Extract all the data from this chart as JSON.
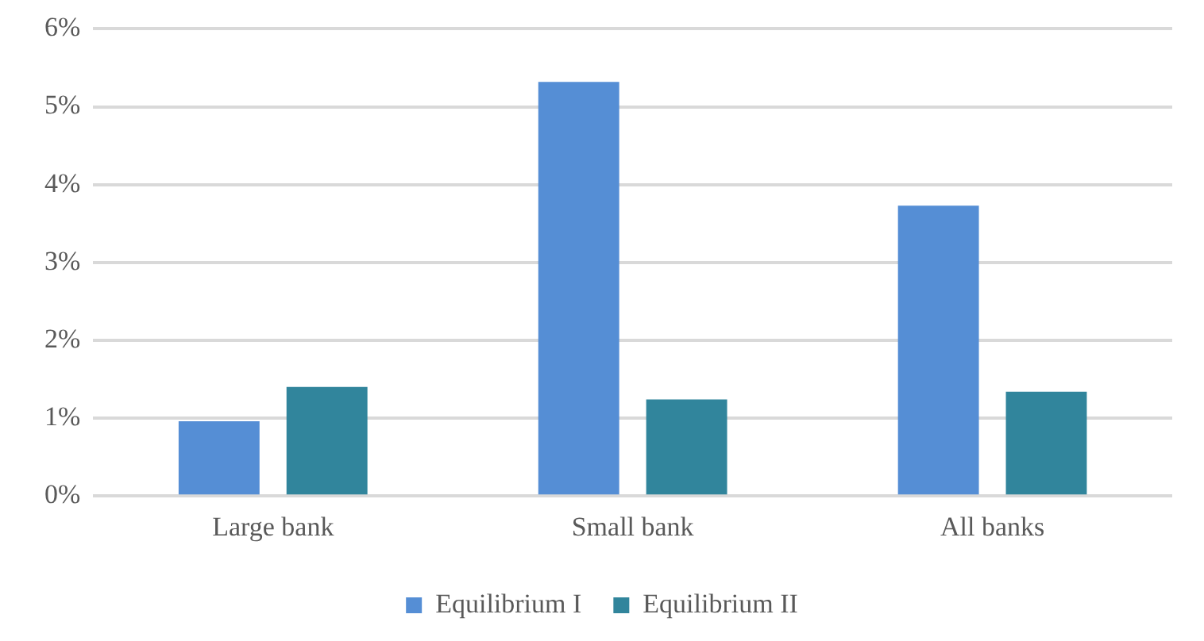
{
  "chart_data": {
    "type": "bar",
    "categories": [
      "Large bank",
      "Small bank",
      "All banks"
    ],
    "series": [
      {
        "name": "Equilibrium I",
        "color": "#558ed5",
        "values": [
          0.96,
          5.32,
          3.73
        ]
      },
      {
        "name": "Equilibrium II",
        "color": "#31859c",
        "values": [
          1.4,
          1.24,
          1.34
        ]
      }
    ],
    "ylim": [
      0,
      6
    ],
    "yticks": [
      {
        "value": 0,
        "label": "0%"
      },
      {
        "value": 1,
        "label": "1%"
      },
      {
        "value": 2,
        "label": "2%"
      },
      {
        "value": 3,
        "label": "3%"
      },
      {
        "value": 4,
        "label": "4%"
      },
      {
        "value": 5,
        "label": "5%"
      },
      {
        "value": 6,
        "label": "6%"
      }
    ],
    "grid": "y",
    "legend": "bottom"
  }
}
